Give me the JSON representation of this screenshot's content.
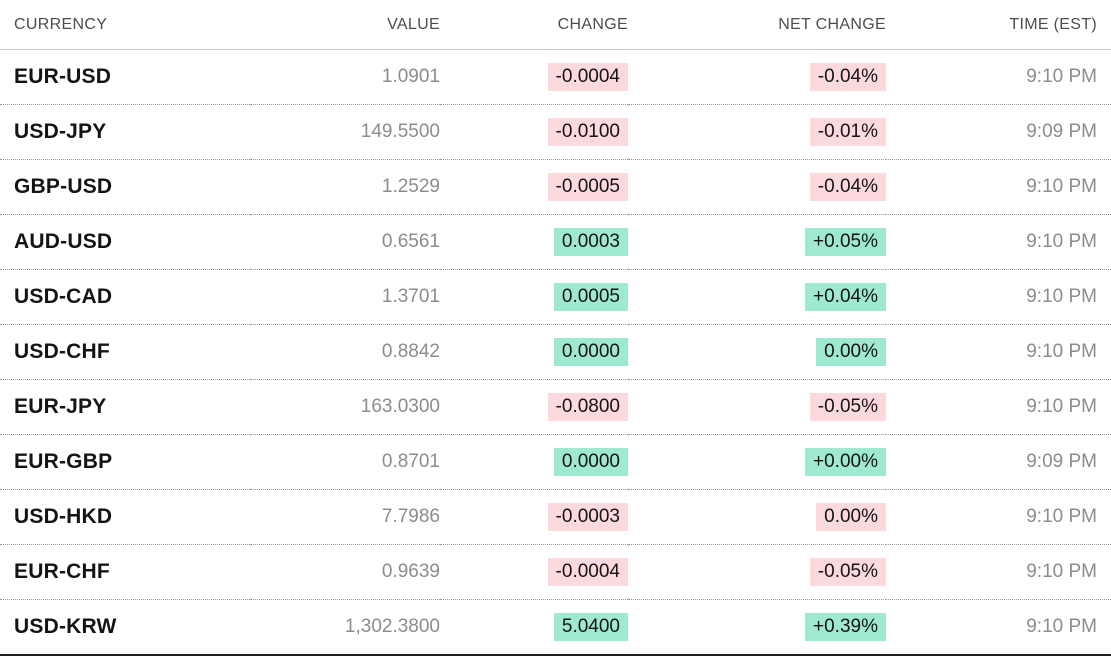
{
  "table": {
    "columns": [
      {
        "key": "currency",
        "label": "CURRENCY"
      },
      {
        "key": "value",
        "label": "VALUE"
      },
      {
        "key": "change",
        "label": "CHANGE"
      },
      {
        "key": "net_change",
        "label": "NET CHANGE"
      },
      {
        "key": "time",
        "label": "TIME (EST)"
      }
    ],
    "rows": [
      {
        "currency": "EUR-USD",
        "value": "1.0901",
        "change": "-0.0004",
        "net_change": "-0.04%",
        "time": "9:10 PM",
        "direction": "down"
      },
      {
        "currency": "USD-JPY",
        "value": "149.5500",
        "change": "-0.0100",
        "net_change": "-0.01%",
        "time": "9:09 PM",
        "direction": "down"
      },
      {
        "currency": "GBP-USD",
        "value": "1.2529",
        "change": "-0.0005",
        "net_change": "-0.04%",
        "time": "9:10 PM",
        "direction": "down"
      },
      {
        "currency": "AUD-USD",
        "value": "0.6561",
        "change": "0.0003",
        "net_change": "+0.05%",
        "time": "9:10 PM",
        "direction": "up"
      },
      {
        "currency": "USD-CAD",
        "value": "1.3701",
        "change": "0.0005",
        "net_change": "+0.04%",
        "time": "9:10 PM",
        "direction": "up"
      },
      {
        "currency": "USD-CHF",
        "value": "0.8842",
        "change": "0.0000",
        "net_change": "0.00%",
        "time": "9:10 PM",
        "direction": "up"
      },
      {
        "currency": "EUR-JPY",
        "value": "163.0300",
        "change": "-0.0800",
        "net_change": "-0.05%",
        "time": "9:10 PM",
        "direction": "down"
      },
      {
        "currency": "EUR-GBP",
        "value": "0.8701",
        "change": "0.0000",
        "net_change": "+0.00%",
        "time": "9:09 PM",
        "direction": "up"
      },
      {
        "currency": "USD-HKD",
        "value": "7.7986",
        "change": "-0.0003",
        "net_change": "0.00%",
        "time": "9:10 PM",
        "direction": "down"
      },
      {
        "currency": "EUR-CHF",
        "value": "0.9639",
        "change": "-0.0004",
        "net_change": "-0.05%",
        "time": "9:10 PM",
        "direction": "down"
      },
      {
        "currency": "USD-KRW",
        "value": "1,302.3800",
        "change": "5.0400",
        "net_change": "+0.39%",
        "time": "9:10 PM",
        "direction": "up"
      }
    ]
  },
  "colors": {
    "positive_bg": "#9fe8d1",
    "negative_bg": "#fcd9dc",
    "header_text": "#4d4d4d",
    "currency_text": "#141414",
    "value_time_text": "#8c8c8c",
    "header_rule": "#c7c7c7",
    "row_rule_dotted": "#9a9a9a",
    "bottom_rule": "#1f1f1f"
  }
}
